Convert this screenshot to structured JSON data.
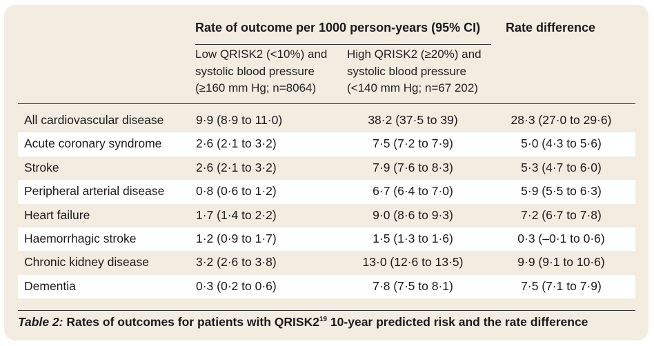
{
  "header": {
    "group_title": "Rate of outcome per 1000 person-years (95% CI)",
    "diff_title": "Rate difference",
    "col_low": "Low QRISK2 (<10%) and systolic blood pressure (≥160 mm Hg; n=8064)",
    "col_high": "High QRISK2 (≥20%) and systolic blood pressure (<140 mm Hg; n=67 202)"
  },
  "rows": [
    {
      "name": "All cardiovascular disease",
      "low": "9·9 (8·9 to 11·0)",
      "high": "38·2 (37·5 to 39)",
      "diff": "28·3 (27·0 to 29·6)"
    },
    {
      "name": "Acute coronary syndrome",
      "low": "2·6 (2·1 to 3·2)",
      "high": "7·5 (7·2 to 7·9)",
      "diff": "5·0 (4·3 to 5·6)"
    },
    {
      "name": "Stroke",
      "low": "2·6 (2·1 to 3·2)",
      "high": "7·9 (7·6 to 8·3)",
      "diff": "5·3 (4·7 to 6·0)"
    },
    {
      "name": "Peripheral arterial disease",
      "low": "0·8 (0·6 to 1·2)",
      "high": "6·7 (6·4 to 7·0)",
      "diff": "5·9 (5·5 to 6·3)"
    },
    {
      "name": "Heart failure",
      "low": "1·7 (1·4 to 2·2)",
      "high": "9·0 (8·6 to 9·3)",
      "diff": "7·2 (6·7 to 7·8)"
    },
    {
      "name": "Haemorrhagic stroke",
      "low": "1·2 (0·9 to 1·7)",
      "high": "1·5 (1·3 to 1·6)",
      "diff": "0·3 (–0·1 to 0·6)"
    },
    {
      "name": "Chronic kidney disease",
      "low": "3·2 (2·6 to 3·8)",
      "high": "13·0 (12·6 to 13·5)",
      "diff": "9·9 (9·1 to 10·6)"
    },
    {
      "name": "Dementia",
      "low": "0·3 (0·2 to 0·6)",
      "high": "7·8 (7·5 to 8·1)",
      "diff": "7·5 (7·1 to 7·9)"
    }
  ],
  "caption": {
    "label": "Table 2:",
    "text": "Rates of outcomes for patients with QRISK2",
    "ref": "19",
    "text_end": "10-year predicted risk and the rate difference"
  }
}
